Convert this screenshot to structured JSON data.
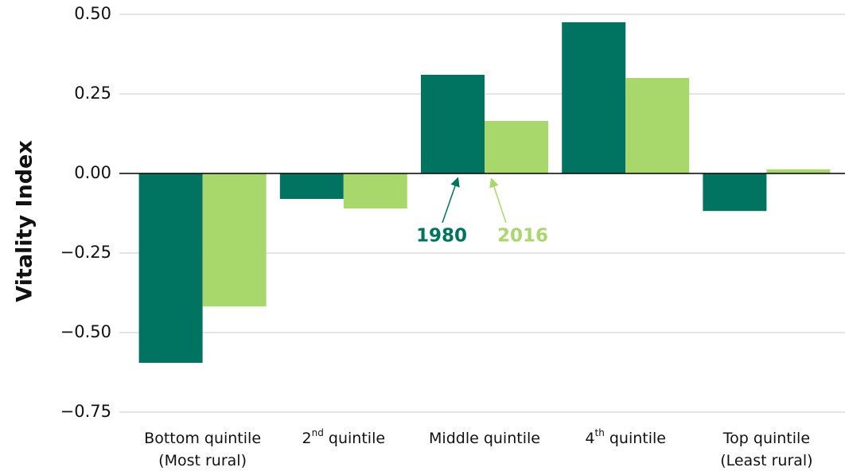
{
  "chart_data": {
    "type": "bar",
    "y_label": "Vitality Index",
    "categories": [
      "Bottom quintile\n(Most rural)",
      "2nd quintile",
      "Middle quintile",
      "4th quintile",
      "Top quintile\n(Least rural)"
    ],
    "series": [
      {
        "name": "1980",
        "color": "#007461",
        "values": [
          -0.595,
          -0.08,
          0.31,
          0.475,
          -0.118
        ]
      },
      {
        "name": "2016",
        "color": "#a8d86b",
        "values": [
          -0.418,
          -0.11,
          0.165,
          0.3,
          0.013
        ]
      }
    ],
    "ylim": [
      -0.75,
      0.5
    ],
    "yticks": [
      {
        "value": -0.75,
        "label": "−0.75"
      },
      {
        "value": -0.5,
        "label": "−0.50"
      },
      {
        "value": -0.25,
        "label": "−0.25"
      },
      {
        "value": 0,
        "label": "0.00"
      },
      {
        "value": 0.25,
        "label": "0.25"
      },
      {
        "value": 0.5,
        "label": "0.50"
      }
    ],
    "grid": true
  }
}
